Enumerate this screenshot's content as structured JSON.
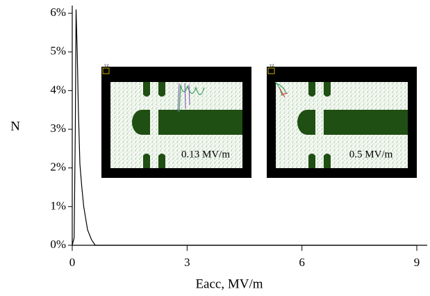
{
  "chart_data": {
    "type": "line",
    "xlabel": "Eacc, MV/m",
    "ylabel": "N",
    "x": [
      0,
      0.05,
      0.08,
      0.1,
      0.13,
      0.16,
      0.2,
      0.25,
      0.3,
      0.35,
      0.4,
      0.5,
      0.6,
      1,
      2,
      3,
      6,
      9
    ],
    "series": [
      {
        "color": "#000000",
        "values": [
          0,
          0.2,
          3,
          6.1,
          5,
          3.5,
          2.1,
          1.5,
          1.0,
          0.7,
          0.4,
          0.15,
          0,
          0,
          0,
          0,
          0,
          0
        ]
      }
    ],
    "xlim": [
      0,
      9
    ],
    "ylim": [
      0,
      6.2
    ],
    "xticks": [
      0,
      3,
      6,
      9
    ],
    "yticks": [
      {
        "value": 0,
        "label": "0%"
      },
      {
        "value": 1,
        "label": "1%"
      },
      {
        "value": 2,
        "label": "2%"
      },
      {
        "value": 3,
        "label": "3%"
      },
      {
        "value": 4,
        "label": "4%"
      },
      {
        "value": 5,
        "label": "5%"
      },
      {
        "value": 6,
        "label": "6%"
      }
    ]
  },
  "insets": [
    {
      "label": "0.13 MV/m",
      "corner": "YZ"
    },
    {
      "label": "0.5 MV/m",
      "corner": "YZ"
    }
  ]
}
